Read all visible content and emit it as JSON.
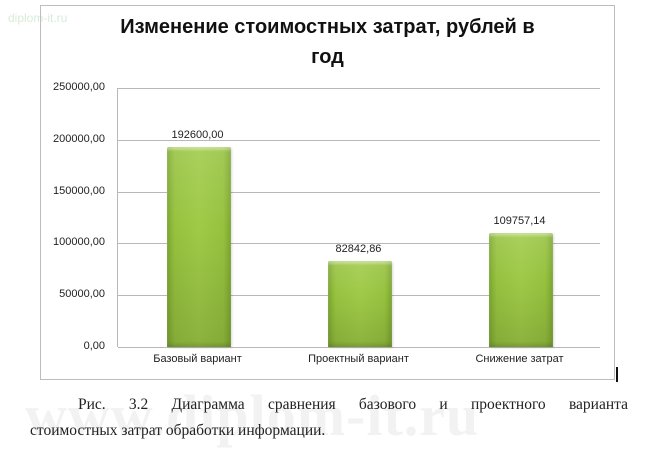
{
  "watermarks": {
    "top": "diplom-it.ru",
    "big": "www.diplom-it.ru"
  },
  "chart_data": {
    "type": "bar",
    "title": "Изменение стоимостных затрат, рублей в год",
    "title_lines": [
      "Изменение стоимостных затрат, рублей в",
      "год"
    ],
    "categories": [
      "Базовый вариант",
      "Проектный вариант",
      "Снижение затрат"
    ],
    "values": [
      192600.0,
      82842.86,
      109757.14
    ],
    "value_labels": [
      "192600,00",
      "82842,86",
      "109757,14"
    ],
    "xlabel": "",
    "ylabel": "",
    "ylim": [
      0,
      250000
    ],
    "yticks": [
      0,
      50000,
      100000,
      150000,
      200000,
      250000
    ],
    "ytick_labels": [
      "0,00",
      "50000,00",
      "100000,00",
      "150000,00",
      "200000,00",
      "250000,00"
    ],
    "grid": true,
    "legend": null,
    "bar_color": "#9bc444"
  },
  "caption": {
    "line1_words": [
      "Рис.",
      "3.2",
      "Диаграмма",
      "сравнения",
      "базового",
      "и",
      "проектного",
      "варианта"
    ],
    "line2": "стоимостных затрат обработки информации."
  }
}
